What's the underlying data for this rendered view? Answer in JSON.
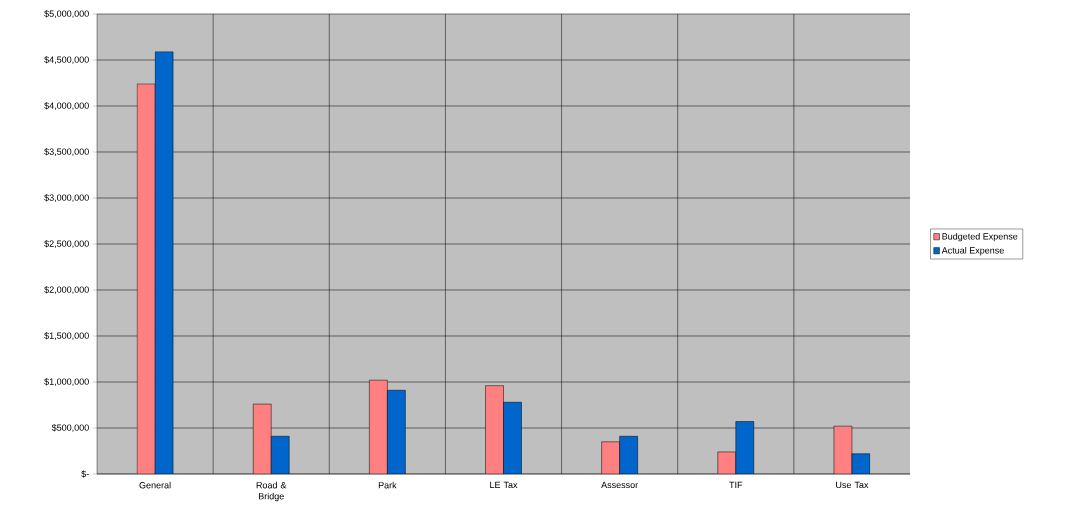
{
  "chart_data": {
    "type": "bar",
    "categories": [
      "General",
      "Road & Bridge",
      "Park",
      "LE Tax",
      "Assessor",
      "TIF",
      "Use Tax"
    ],
    "series": [
      {
        "name": "Budgeted Expense",
        "color": "#ff8080",
        "values": [
          4240000,
          760000,
          1020000,
          960000,
          350000,
          240000,
          520000
        ]
      },
      {
        "name": "Actual Expense",
        "color": "#0066cc",
        "values": [
          4590000,
          410000,
          910000,
          780000,
          410000,
          570000,
          220000
        ]
      }
    ],
    "ylim": [
      0,
      5000000
    ],
    "yticks": [
      {
        "value": 0,
        "label": "$-"
      },
      {
        "value": 500000,
        "label": "$500,000"
      },
      {
        "value": 1000000,
        "label": "$1,000,000"
      },
      {
        "value": 1500000,
        "label": "$1,500,000"
      },
      {
        "value": 2000000,
        "label": "$2,000,000"
      },
      {
        "value": 2500000,
        "label": "$2,500,000"
      },
      {
        "value": 3000000,
        "label": "$3,000,000"
      },
      {
        "value": 3500000,
        "label": "$3,500,000"
      },
      {
        "value": 4000000,
        "label": "$4,000,000"
      },
      {
        "value": 4500000,
        "label": "$4,500,000"
      },
      {
        "value": 5000000,
        "label": "$5,000,000"
      }
    ],
    "grid": true,
    "legend": "right"
  }
}
